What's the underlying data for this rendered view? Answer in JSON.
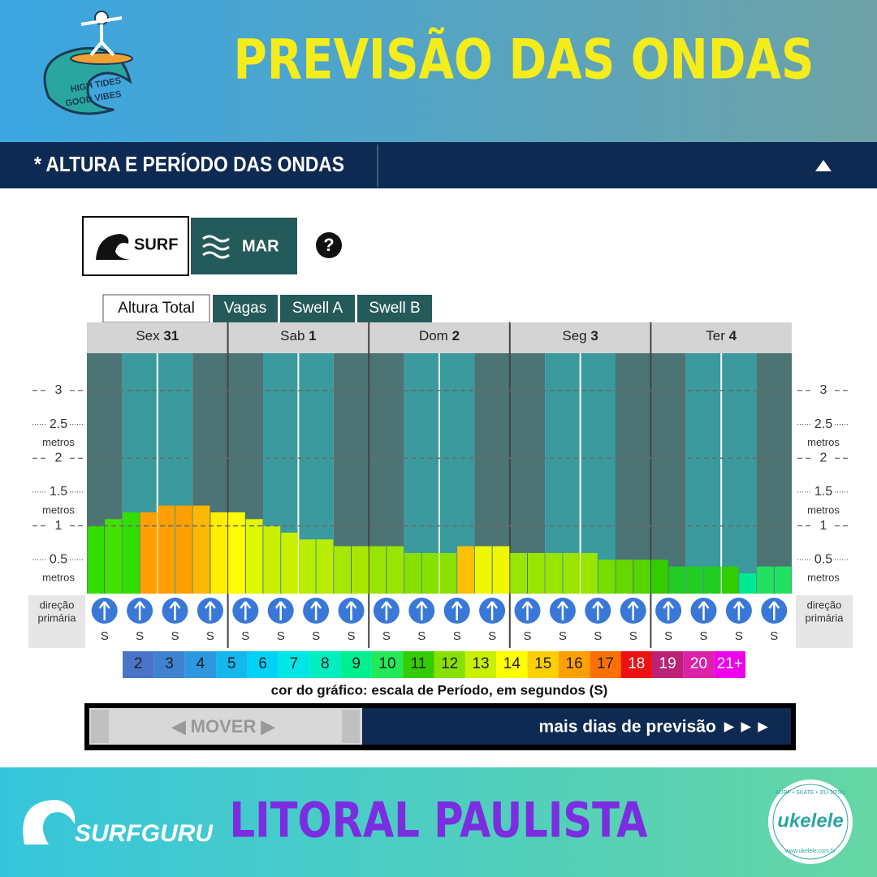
{
  "header": {
    "title": "PREVISÃO DAS ONDAS",
    "logo_text": [
      "HIGH TIDES",
      "GOOD VIBES"
    ]
  },
  "section": {
    "title": "* ALTURA E PERÍODO DAS ONDAS"
  },
  "buttons": [
    "SURF",
    "MAR",
    "?"
  ],
  "tabs": [
    "Altura Total",
    "Vagas",
    "Swell A",
    "Swell B"
  ],
  "chart_data": {
    "type": "bar",
    "days": [
      {
        "name": "Sex",
        "date": 31
      },
      {
        "name": "Sab",
        "date": 1
      },
      {
        "name": "Dom",
        "date": 2
      },
      {
        "name": "Seg",
        "date": 3
      },
      {
        "name": "Ter",
        "date": 4
      }
    ],
    "values": [
      1.0,
      1.1,
      1.2,
      1.2,
      1.3,
      1.3,
      1.3,
      1.2,
      1.2,
      1.1,
      1.0,
      0.9,
      0.8,
      0.8,
      0.7,
      0.7,
      0.7,
      0.7,
      0.6,
      0.6,
      0.6,
      0.7,
      0.7,
      0.7,
      0.6,
      0.6,
      0.6,
      0.6,
      0.6,
      0.5,
      0.5,
      0.5,
      0.5,
      0.4,
      0.4,
      0.4,
      0.4,
      0.3,
      0.4,
      0.4
    ],
    "colors": [
      "#33dd00",
      "#44e000",
      "#33dd00",
      "#ffa000",
      "#ffa000",
      "#ffa000",
      "#ffb800",
      "#ffee00",
      "#ffff00",
      "#e0f800",
      "#c8f000",
      "#c8f000",
      "#b8ec00",
      "#b8ec00",
      "#a8e800",
      "#a8e800",
      "#99e400",
      "#99e400",
      "#88e000",
      "#88e000",
      "#88e000",
      "#ffc000",
      "#f0f800",
      "#f0f800",
      "#99e400",
      "#99e400",
      "#99e400",
      "#99e400",
      "#99e400",
      "#77dc00",
      "#66d800",
      "#55d400",
      "#33cc00",
      "#22cc22",
      "#22cc22",
      "#22cc22",
      "#33cc00",
      "#00e890",
      "#22e060",
      "#22e060"
    ],
    "ylim": [
      0,
      3.55
    ],
    "yticks": [
      0.5,
      1,
      1.5,
      2,
      2.5,
      3
    ],
    "y_unit": "metros",
    "direction_label": [
      "direção",
      "primária"
    ],
    "directions": [
      "S",
      "S",
      "S",
      "S",
      "S",
      "S",
      "S",
      "S",
      "S",
      "S",
      "S",
      "S",
      "S",
      "S",
      "S",
      "S",
      "S",
      "S",
      "S",
      "S"
    ],
    "period_scale": {
      "labels": [
        "2",
        "3",
        "4",
        "5",
        "6",
        "7",
        "8",
        "9",
        "10",
        "11",
        "12",
        "13",
        "14",
        "15",
        "16",
        "17",
        "18",
        "19",
        "20",
        "21+"
      ],
      "colors": [
        "#4a74c8",
        "#3e82d0",
        "#2d98e0",
        "#16b6ee",
        "#00d2f5",
        "#00e6e6",
        "#00eec0",
        "#00f090",
        "#22e85a",
        "#33cc00",
        "#88e000",
        "#c8f000",
        "#ffff00",
        "#ffd000",
        "#ffa000",
        "#ff7000",
        "#ee1111",
        "#bb2277",
        "#dd22aa",
        "#ee00ee"
      ]
    },
    "caption": "cor do gráfico: escala de Período, em segundos (S)"
  },
  "navigation": {
    "move": "◀ MOVER ▶",
    "more": "mais dias de previsão ►►►"
  },
  "footer": {
    "title": "LITORAL PAULISTA",
    "brand": "SURFGURU",
    "partner": "ukelele",
    "partner_tagline": "SURF • SKATE • JIU-JITSU",
    "partner_url": "www.ukelele.com.br"
  }
}
